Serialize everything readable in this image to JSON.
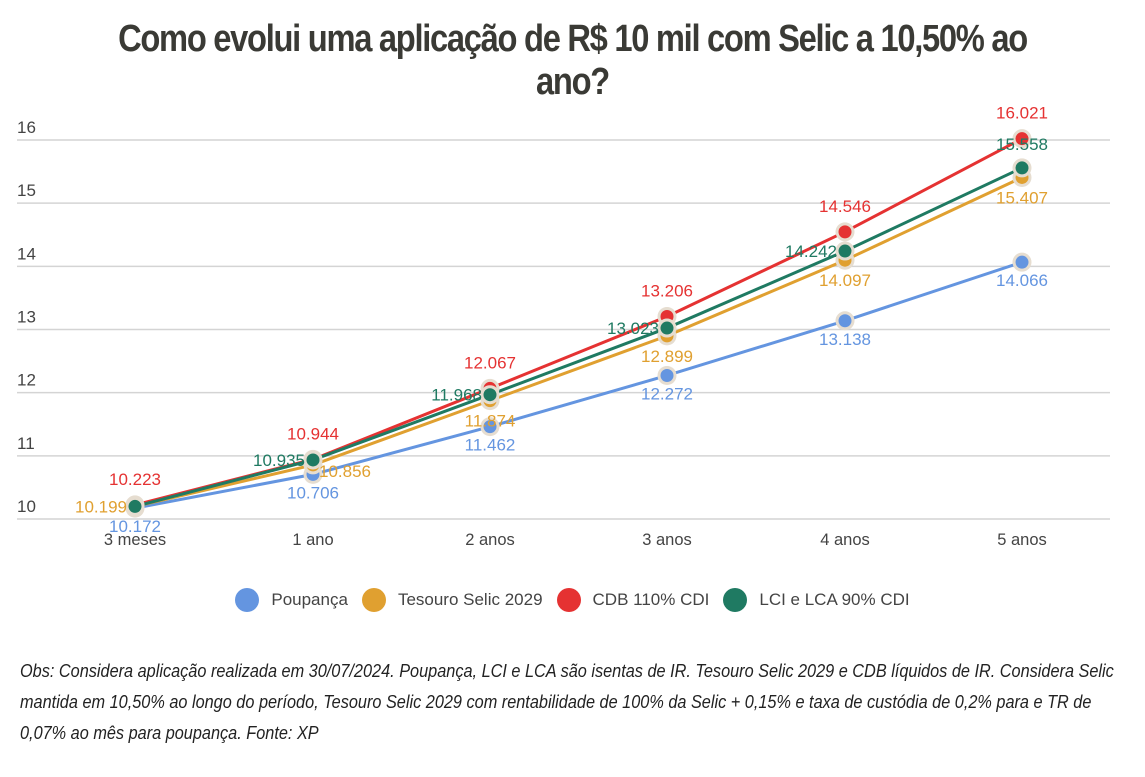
{
  "title": "Como evolui uma aplicação de R$ 10 mil com Selic a 10,50% ao ano?",
  "chart_data": {
    "type": "line",
    "title": "Como evolui uma aplicação de R$ 10 mil com Selic a 10,50% ao ano?",
    "xlabel": "",
    "ylabel": "",
    "categories": [
      "3 meses",
      "1 ano",
      "2 anos",
      "3 anos",
      "4 anos",
      "5 anos"
    ],
    "ylim": [
      10,
      16
    ],
    "yticks": [
      "10",
      "11",
      "12",
      "13",
      "14",
      "15",
      "16"
    ],
    "grid": true,
    "legend_position": "bottom",
    "series": [
      {
        "name": "Poupança",
        "color": "#6495e0",
        "values": [
          10.172,
          10.706,
          11.462,
          12.272,
          13.138,
          14.066
        ],
        "labels": [
          "10.172",
          "10.706",
          "11.462",
          "12.272",
          "13.138",
          "14.066"
        ]
      },
      {
        "name": "Tesouro Selic 2029",
        "color": "#e0a030",
        "values": [
          10.199,
          10.856,
          11.874,
          12.899,
          14.097,
          15.407
        ],
        "labels": [
          "10.199",
          "10.856",
          "11.874",
          "12.899",
          "14.097",
          "15.407"
        ]
      },
      {
        "name": "CDB 110% CDI",
        "color": "#e53232",
        "values": [
          10.223,
          10.944,
          12.067,
          13.206,
          14.546,
          16.021
        ],
        "labels": [
          "10.223",
          "10.944",
          "12.067",
          "13.206",
          "14.546",
          "16.021"
        ]
      },
      {
        "name": "LCI e LCA 90% CDI",
        "color": "#1f7a62",
        "values": [
          10.199,
          10.935,
          11.968,
          13.023,
          14.242,
          15.558
        ],
        "labels": [
          null,
          "10.935",
          "11.968",
          "13.023",
          "14.242",
          "15.558"
        ]
      }
    ]
  },
  "legend": [
    {
      "label": "Poupança",
      "color": "#6495e0"
    },
    {
      "label": "Tesouro Selic 2029",
      "color": "#e0a030"
    },
    {
      "label": "CDB 110% CDI",
      "color": "#e53232"
    },
    {
      "label": "LCI e LCA 90% CDI",
      "color": "#1f7a62"
    }
  ],
  "note": "Obs: Considera aplicação realizada em 30/07/2024. Poupança, LCI e LCA são isentas de IR. Tesouro Selic 2029 e CDB líquidos de IR. Considera Selic mantida em 10,50% ao longo do período, Tesouro Selic 2029 com rentabilidade de 100% da Selic + 0,15% e taxa de custódia de 0,2% para  e TR de 0,07% ao mês para poupança. Fonte: XP"
}
